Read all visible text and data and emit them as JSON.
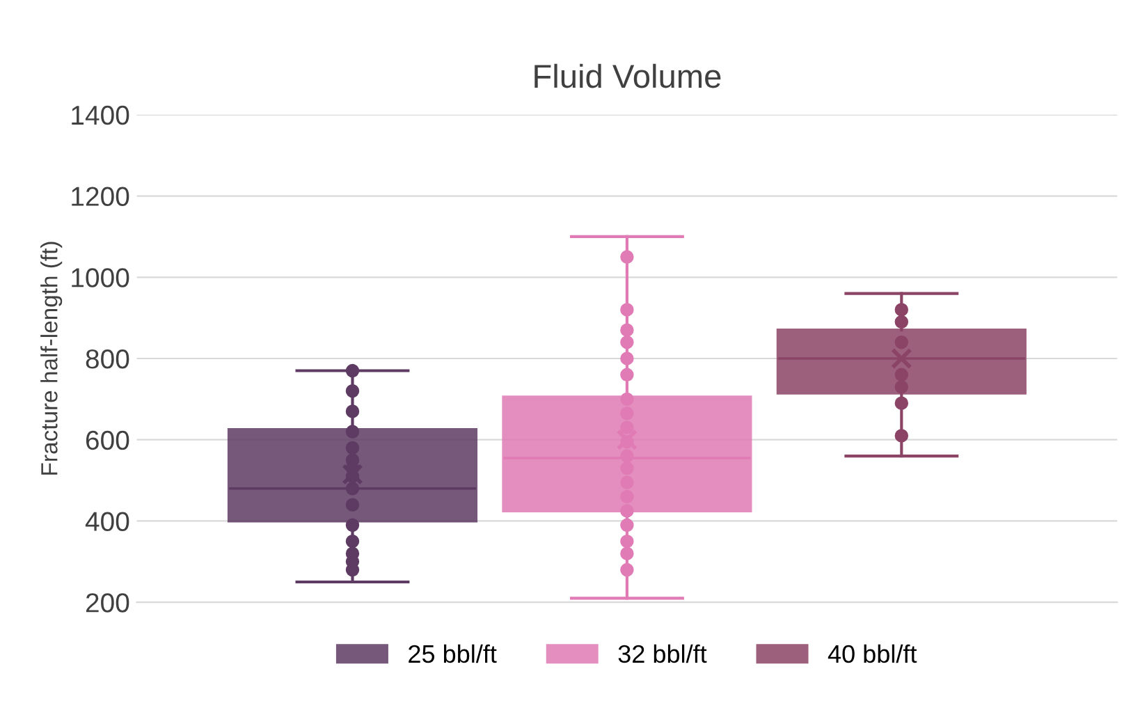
{
  "chart_data": {
    "type": "box",
    "title": "Fluid Volume",
    "ylabel": "Fracture half-length (ft)",
    "categories": [
      null
    ],
    "series": [
      {
        "name": "25 bbl/ft",
        "color": "#5e3b63",
        "boxes": [
          {
            "low": 250,
            "q1": 400,
            "median": 480,
            "q3": 625,
            "high": 770,
            "mean": 515
          }
        ]
      },
      {
        "name": "32 bbl/ft",
        "color": "#e07bb5",
        "boxes": [
          {
            "low": 210,
            "q1": 425,
            "median": 555,
            "q3": 705,
            "high": 1100,
            "mean": 600
          }
        ]
      },
      {
        "name": "40 bbl/ft",
        "color": "#8b4466",
        "boxes": [
          {
            "low": 560,
            "q1": 715,
            "median": 800,
            "q3": 870,
            "high": 960,
            "mean": 800
          }
        ]
      },
      {
        "type": "scatter",
        "color": "#5e3b63",
        "x": [
          null,
          null,
          null,
          null,
          null,
          null,
          null,
          null,
          null,
          null,
          null,
          null,
          null,
          null,
          null
        ],
        "values": [
          770,
          720,
          670,
          620,
          580,
          550,
          530,
          510,
          480,
          440,
          390,
          350,
          320,
          300,
          280
        ]
      },
      {
        "type": "scatter",
        "color": "#e07bb5",
        "x": [
          null,
          null,
          null,
          null,
          null,
          null,
          null,
          null,
          null,
          null,
          null,
          null,
          null,
          null,
          null,
          null,
          null,
          null,
          null
        ],
        "values": [
          1050,
          920,
          870,
          840,
          800,
          760,
          700,
          665,
          630,
          595,
          560,
          530,
          495,
          460,
          425,
          390,
          350,
          320,
          280
        ]
      },
      {
        "type": "scatter",
        "color": "#8b4466",
        "x": [
          null,
          null,
          null,
          null,
          null,
          null,
          null
        ],
        "values": [
          920,
          890,
          840,
          760,
          730,
          690,
          610
        ]
      }
    ],
    "ylim": [
      200,
      1400
    ],
    "yticks": [
      200,
      400,
      600,
      800,
      1000,
      1200,
      1400
    ],
    "grid": "y",
    "legend": "bottom",
    "marker": "circle",
    "tick_labels": "y"
  }
}
